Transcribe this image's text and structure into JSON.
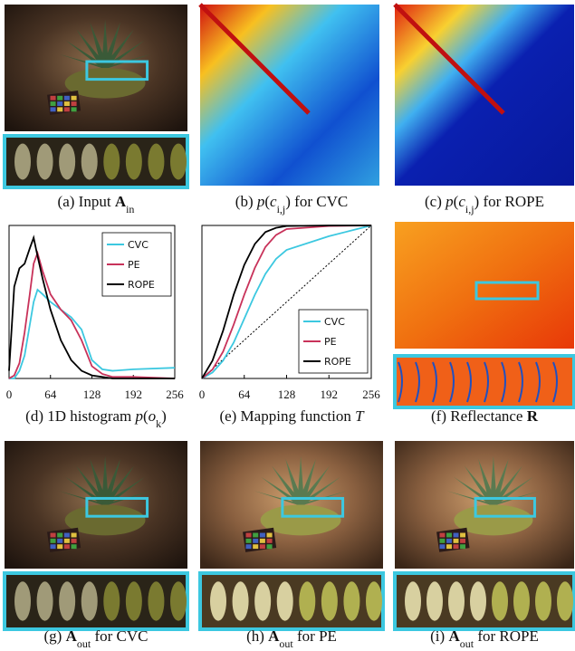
{
  "captions": [
    {
      "parts": [
        {
          "text": "(a) Input ",
          "style": "normal"
        },
        {
          "text": "A",
          "style": "bold"
        },
        {
          "text": "in",
          "style": "sub"
        }
      ]
    },
    {
      "parts": [
        {
          "text": "(b) ",
          "style": "normal"
        },
        {
          "text": "p",
          "style": "italic"
        },
        {
          "text": "(",
          "style": "normal"
        },
        {
          "text": "c",
          "style": "italic"
        },
        {
          "text": "i,j",
          "style": "sub"
        },
        {
          "text": ")",
          "style": "normal"
        },
        {
          "text": " for CVC",
          "style": "normal"
        }
      ]
    },
    {
      "parts": [
        {
          "text": "(c) ",
          "style": "normal"
        },
        {
          "text": "p",
          "style": "italic"
        },
        {
          "text": "(",
          "style": "normal"
        },
        {
          "text": "c",
          "style": "italic"
        },
        {
          "text": "i,j",
          "style": "sub"
        },
        {
          "text": ")",
          "style": "normal"
        },
        {
          "text": " for ROPE",
          "style": "normal"
        }
      ]
    },
    {
      "parts": [
        {
          "text": "(d) 1D histogram ",
          "style": "normal"
        },
        {
          "text": "p",
          "style": "italic"
        },
        {
          "text": "(",
          "style": "normal"
        },
        {
          "text": "o",
          "style": "italic"
        },
        {
          "text": "k",
          "style": "sub"
        },
        {
          "text": ")",
          "style": "normal"
        }
      ]
    },
    {
      "parts": [
        {
          "text": "(e) Mapping function ",
          "style": "normal"
        },
        {
          "text": "T",
          "style": "italic"
        }
      ]
    },
    {
      "parts": [
        {
          "text": "(f) Reflectance ",
          "style": "normal"
        },
        {
          "text": "R",
          "style": "bold"
        }
      ]
    },
    {
      "parts": [
        {
          "text": "(g) ",
          "style": "normal"
        },
        {
          "text": "A",
          "style": "bold"
        },
        {
          "text": "out",
          "style": "sub"
        },
        {
          "text": " for CVC",
          "style": "normal"
        }
      ]
    },
    {
      "parts": [
        {
          "text": "(h) ",
          "style": "normal"
        },
        {
          "text": "A",
          "style": "bold"
        },
        {
          "text": "out",
          "style": "sub"
        },
        {
          "text": " for PE",
          "style": "normal"
        }
      ]
    },
    {
      "parts": [
        {
          "text": "(i) ",
          "style": "normal"
        },
        {
          "text": "A",
          "style": "bold"
        },
        {
          "text": "out",
          "style": "sub"
        },
        {
          "text": " for ROPE",
          "style": "normal"
        }
      ]
    }
  ],
  "chart_data": [
    {
      "type": "line",
      "legend": "upper right",
      "x": [
        0,
        8,
        16,
        24,
        32,
        38,
        44,
        52,
        64,
        80,
        96,
        112,
        128,
        144,
        160,
        192,
        256
      ],
      "xlim": [
        0,
        256
      ],
      "xticks": [
        0,
        64,
        128,
        192,
        256
      ],
      "ylim": [
        0,
        1
      ],
      "series": [
        {
          "name": "CVC",
          "color": "#3cc8e0",
          "values": [
            0,
            0,
            0.05,
            0.15,
            0.35,
            0.5,
            0.58,
            0.55,
            0.5,
            0.45,
            0.4,
            0.32,
            0.12,
            0.06,
            0.05,
            0.06,
            0.07
          ]
        },
        {
          "name": "PE",
          "color": "#c8325a",
          "values": [
            0,
            0.02,
            0.1,
            0.3,
            0.55,
            0.75,
            0.82,
            0.7,
            0.55,
            0.45,
            0.38,
            0.25,
            0.08,
            0.03,
            0.01,
            0.01,
            0
          ]
        },
        {
          "name": "ROPE",
          "color": "#000000",
          "values": [
            0.05,
            0.6,
            0.72,
            0.75,
            0.85,
            0.92,
            0.8,
            0.65,
            0.45,
            0.25,
            0.12,
            0.05,
            0.02,
            0.01,
            0,
            0,
            0
          ]
        }
      ]
    },
    {
      "type": "line",
      "legend": "lower right",
      "x": [
        0,
        16,
        32,
        48,
        64,
        80,
        96,
        112,
        128,
        192,
        256
      ],
      "xlim": [
        0,
        256
      ],
      "xticks": [
        0,
        64,
        128,
        192,
        256
      ],
      "ylim": [
        0,
        256
      ],
      "series": [
        {
          "name": "CVC",
          "color": "#3cc8e0",
          "values": [
            0,
            10,
            30,
            60,
            100,
            140,
            175,
            200,
            215,
            238,
            256
          ]
        },
        {
          "name": "PE",
          "color": "#c8325a",
          "values": [
            0,
            15,
            45,
            90,
            140,
            185,
            220,
            240,
            250,
            255,
            256
          ]
        },
        {
          "name": "ROPE",
          "color": "#000000",
          "values": [
            0,
            30,
            80,
            140,
            190,
            225,
            245,
            252,
            255,
            256,
            256
          ]
        }
      ]
    }
  ]
}
